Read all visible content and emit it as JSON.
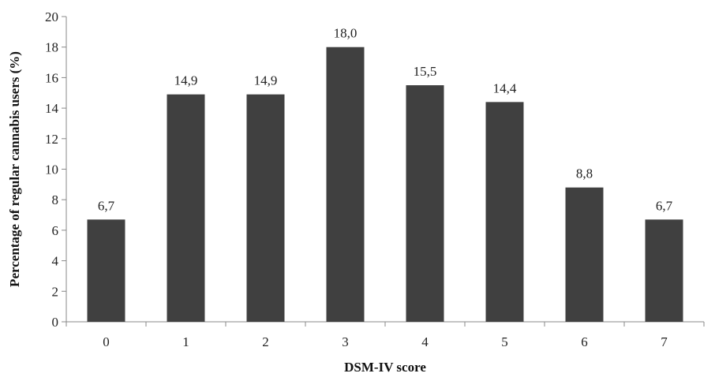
{
  "chart_data": {
    "type": "bar",
    "categories": [
      "0",
      "1",
      "2",
      "3",
      "4",
      "5",
      "6",
      "7"
    ],
    "values": [
      6.7,
      14.9,
      14.9,
      18.0,
      15.5,
      14.4,
      8.8,
      6.7
    ],
    "data_labels": [
      "6,7",
      "14,9",
      "14,9",
      "18,0",
      "15,5",
      "14,4",
      "8,8",
      "6,7"
    ],
    "xlabel": "DSM-IV score",
    "ylabel": "Percentage of regular cannabis users (%)",
    "ylim": [
      0,
      20
    ],
    "yticks": [
      0,
      2,
      4,
      6,
      8,
      10,
      12,
      14,
      16,
      18,
      20
    ],
    "grid": false,
    "bar_color": "#404040"
  }
}
